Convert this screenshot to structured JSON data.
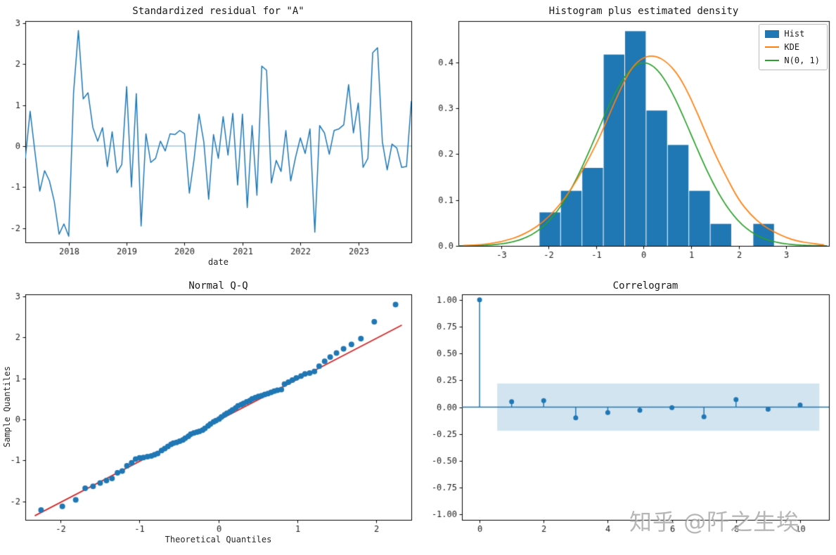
{
  "watermark": {
    "text": "知乎 @阡之生埃"
  },
  "colors": {
    "line_blue": "#1f77b4",
    "kde_orange": "#ff7f0e",
    "normal_green": "#2ca02c",
    "ref_red": "#d62728",
    "band_blue": "rgba(31,119,180,0.2)",
    "zero_line": "rgba(31,119,180,0.5)",
    "spine": "#000000",
    "tick_text": "#1a1a1a"
  },
  "chart_data": [
    {
      "type": "line",
      "title": "Standardized residual for \"A\"",
      "xlabel": "date",
      "x_range": [
        0,
        80
      ],
      "y_range": [
        -2.35,
        3.05
      ],
      "x_ticks": [
        9,
        21,
        33,
        45,
        57,
        69
      ],
      "x_tick_labels": [
        "2018",
        "2019",
        "2020",
        "2021",
        "2022",
        "2023"
      ],
      "y_ticks": [
        -2,
        -1,
        0,
        1,
        2,
        3
      ],
      "y_tick_labels": [
        "-2",
        "-1",
        "0",
        "1",
        "2",
        "3"
      ],
      "zero_line": 0,
      "values": [
        -0.3,
        0.85,
        -0.15,
        -1.1,
        -0.6,
        -0.85,
        -1.35,
        -2.15,
        -1.9,
        -2.2,
        1.3,
        2.82,
        1.15,
        1.3,
        0.45,
        0.12,
        0.45,
        -0.5,
        0.35,
        -0.65,
        -0.45,
        1.45,
        -1.0,
        1.28,
        -1.95,
        0.3,
        -0.4,
        -0.3,
        0.12,
        -0.12,
        0.3,
        0.28,
        0.38,
        0.3,
        -1.15,
        -0.3,
        0.78,
        0.1,
        -1.3,
        0.28,
        -0.3,
        0.72,
        -0.22,
        0.8,
        -0.95,
        0.78,
        -1.5,
        0.5,
        -1.2,
        1.95,
        1.85,
        -0.9,
        -0.35,
        -0.62,
        0.38,
        -0.85,
        -0.28,
        0.2,
        -0.18,
        0.42,
        -2.1,
        0.5,
        0.32,
        -0.2,
        0.38,
        0.42,
        0.52,
        1.5,
        0.32,
        1.05,
        -0.52,
        -0.3,
        2.28,
        2.4,
        0.1,
        -0.58,
        0.05,
        -0.05,
        -0.52,
        -0.5,
        1.1
      ]
    },
    {
      "type": "histogram",
      "title": "Histogram plus estimated density",
      "legend": [
        "Hist",
        "KDE",
        "N(0, 1)"
      ],
      "x_range": [
        -3.9,
        3.9
      ],
      "y_range": [
        0,
        0.49
      ],
      "x_ticks": [
        -3,
        -2,
        -1,
        0,
        1,
        2,
        3
      ],
      "x_tick_labels": [
        "-3",
        "-2",
        "-1",
        "0",
        "1",
        "2",
        "3"
      ],
      "y_ticks": [
        0,
        0.1,
        0.2,
        0.3,
        0.4
      ],
      "y_tick_labels": [
        "0.0",
        "0.1",
        "0.2",
        "0.3",
        "0.4"
      ],
      "bin_edges": [
        -2.2,
        -1.75,
        -1.3,
        -0.85,
        -0.4,
        0.05,
        0.5,
        0.95,
        1.4,
        1.85,
        2.3,
        2.75
      ],
      "bin_heights": [
        0.073,
        0.12,
        0.17,
        0.417,
        0.468,
        0.295,
        0.22,
        0.12,
        0.048,
        0,
        0.048
      ],
      "kde_points": [
        [
          -3.8,
          0.001
        ],
        [
          -3.5,
          0.002
        ],
        [
          -3.0,
          0.008
        ],
        [
          -2.5,
          0.025
        ],
        [
          -2.0,
          0.06
        ],
        [
          -1.5,
          0.125
        ],
        [
          -1.0,
          0.22
        ],
        [
          -0.75,
          0.28
        ],
        [
          -0.5,
          0.34
        ],
        [
          -0.25,
          0.39
        ],
        [
          0.0,
          0.412
        ],
        [
          0.25,
          0.415
        ],
        [
          0.5,
          0.4
        ],
        [
          0.75,
          0.37
        ],
        [
          1.0,
          0.32
        ],
        [
          1.25,
          0.26
        ],
        [
          1.5,
          0.2
        ],
        [
          1.75,
          0.148
        ],
        [
          2.0,
          0.1
        ],
        [
          2.25,
          0.068
        ],
        [
          2.5,
          0.045
        ],
        [
          2.75,
          0.03
        ],
        [
          3.0,
          0.018
        ],
        [
          3.25,
          0.01
        ],
        [
          3.5,
          0.006
        ],
        [
          3.8,
          0.002
        ]
      ],
      "normal_curve": "N(0,1)"
    },
    {
      "type": "scatter",
      "title": "Normal Q-Q",
      "xlabel": "Theoretical Quantiles",
      "ylabel": "Sample Quantiles",
      "x_range": [
        -2.45,
        2.45
      ],
      "y_range": [
        -2.45,
        3.05
      ],
      "x_ticks": [
        -2,
        -1,
        0,
        1,
        2
      ],
      "x_tick_labels": [
        "-2",
        "-1",
        "0",
        "1",
        "2"
      ],
      "y_ticks": [
        -2,
        -1,
        0,
        1,
        2,
        3
      ],
      "y_tick_labels": [
        "-2",
        "-1",
        "0",
        "1",
        "2",
        "3"
      ],
      "ref_line": [
        [
          -2.33,
          -2.35
        ],
        [
          2.33,
          2.3
        ]
      ],
      "points": [
        [
          -2.25,
          -2.21
        ],
        [
          -1.98,
          -2.12
        ],
        [
          -1.81,
          -1.96
        ],
        [
          -1.69,
          -1.68
        ],
        [
          -1.59,
          -1.63
        ],
        [
          -1.5,
          -1.55
        ],
        [
          -1.42,
          -1.49
        ],
        [
          -1.35,
          -1.44
        ],
        [
          -1.28,
          -1.3
        ],
        [
          -1.22,
          -1.26
        ],
        [
          -1.16,
          -1.13
        ],
        [
          -1.1,
          -1.06
        ],
        [
          -1.05,
          -0.97
        ],
        [
          -1.0,
          -0.94
        ],
        [
          -0.95,
          -0.93
        ],
        [
          -0.9,
          -0.91
        ],
        [
          -0.85,
          -0.89
        ],
        [
          -0.81,
          -0.86
        ],
        [
          -0.77,
          -0.83
        ],
        [
          -0.72,
          -0.76
        ],
        [
          -0.68,
          -0.71
        ],
        [
          -0.64,
          -0.66
        ],
        [
          -0.6,
          -0.61
        ],
        [
          -0.57,
          -0.58
        ],
        [
          -0.53,
          -0.56
        ],
        [
          -0.49,
          -0.53
        ],
        [
          -0.45,
          -0.5
        ],
        [
          -0.42,
          -0.46
        ],
        [
          -0.38,
          -0.41
        ],
        [
          -0.35,
          -0.36
        ],
        [
          -0.31,
          -0.33
        ],
        [
          -0.27,
          -0.31
        ],
        [
          -0.24,
          -0.29
        ],
        [
          -0.2,
          -0.26
        ],
        [
          -0.17,
          -0.22
        ],
        [
          -0.13,
          -0.16
        ],
        [
          -0.1,
          -0.11
        ],
        [
          -0.06,
          -0.06
        ],
        [
          -0.03,
          -0.03
        ],
        [
          0.01,
          0.01
        ],
        [
          0.04,
          0.06
        ],
        [
          0.08,
          0.11
        ],
        [
          0.11,
          0.15
        ],
        [
          0.15,
          0.19
        ],
        [
          0.18,
          0.23
        ],
        [
          0.22,
          0.28
        ],
        [
          0.25,
          0.33
        ],
        [
          0.29,
          0.36
        ],
        [
          0.32,
          0.39
        ],
        [
          0.36,
          0.43
        ],
        [
          0.4,
          0.46
        ],
        [
          0.43,
          0.5
        ],
        [
          0.47,
          0.53
        ],
        [
          0.51,
          0.56
        ],
        [
          0.55,
          0.58
        ],
        [
          0.59,
          0.61
        ],
        [
          0.63,
          0.63
        ],
        [
          0.67,
          0.66
        ],
        [
          0.71,
          0.69
        ],
        [
          0.75,
          0.71
        ],
        [
          0.8,
          0.73
        ],
        [
          0.84,
          0.86
        ],
        [
          0.89,
          0.91
        ],
        [
          0.94,
          0.96
        ],
        [
          0.99,
          1.01
        ],
        [
          1.05,
          1.06
        ],
        [
          1.1,
          1.11
        ],
        [
          1.16,
          1.13
        ],
        [
          1.22,
          1.17
        ],
        [
          1.28,
          1.3
        ],
        [
          1.35,
          1.42
        ],
        [
          1.42,
          1.52
        ],
        [
          1.5,
          1.62
        ],
        [
          1.59,
          1.72
        ],
        [
          1.69,
          1.83
        ],
        [
          1.81,
          1.97
        ],
        [
          1.98,
          2.38
        ],
        [
          2.25,
          2.8
        ]
      ]
    },
    {
      "type": "stem",
      "title": "Correlogram",
      "x_range": [
        -0.55,
        10.9
      ],
      "y_range": [
        -1.05,
        1.05
      ],
      "x_ticks": [
        0,
        2,
        4,
        6,
        8,
        10
      ],
      "x_tick_labels": [
        "0",
        "2",
        "4",
        "6",
        "8",
        "10"
      ],
      "y_ticks": [
        -1,
        -0.75,
        -0.5,
        -0.25,
        0,
        0.25,
        0.5,
        0.75,
        1
      ],
      "y_tick_labels": [
        "-1.00",
        "-0.75",
        "-0.50",
        "-0.25",
        "0.00",
        "0.25",
        "0.50",
        "0.75",
        "1.00"
      ],
      "lags": [
        0,
        1,
        2,
        3,
        4,
        5,
        6,
        7,
        8,
        9,
        10
      ],
      "acf": [
        1.0,
        0.05,
        0.06,
        -0.1,
        -0.05,
        -0.03,
        -0.005,
        -0.09,
        0.07,
        -0.02,
        0.02
      ],
      "conf_band": 0.22,
      "band_x": [
        0.55,
        10.6
      ]
    }
  ]
}
